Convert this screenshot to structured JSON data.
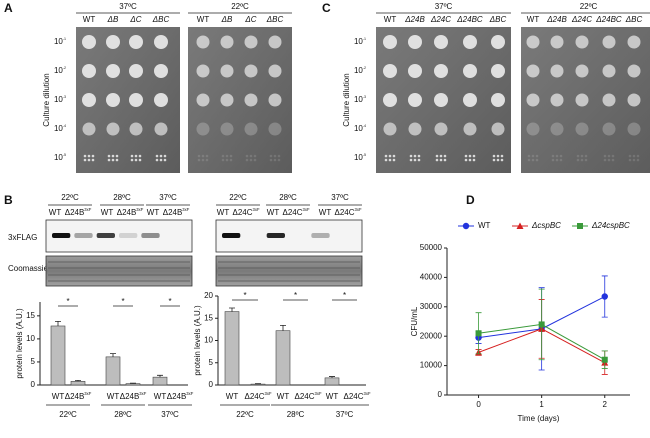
{
  "panel_labels": [
    "A",
    "B",
    "C",
    "D"
  ],
  "panel_a": {
    "temps": [
      "37ºC",
      "22ºC"
    ],
    "strains": [
      "WT",
      "ΔB",
      "ΔC",
      "ΔBC"
    ],
    "dilution_base": "10",
    "dilution_exponents": [
      "-1",
      "-2",
      "-3",
      "-4",
      "-5"
    ],
    "ylabel": "Culture dilution"
  },
  "panel_c": {
    "temps": [
      "37ºC",
      "22ºC"
    ],
    "strains": [
      "WT",
      "Δ24B",
      "Δ24C",
      "Δ24BC",
      "ΔBC"
    ],
    "dilution_base": "10",
    "dilution_exponents": [
      "-1",
      "-2",
      "-3",
      "-4",
      "-5"
    ],
    "ylabel": "Culture dilution"
  },
  "panel_b": {
    "row_labels": [
      "3xFLAG",
      "Coomassie"
    ],
    "blot_left": {
      "temps": [
        "22ºC",
        "28ºC",
        "37ºC"
      ],
      "strains": [
        "WT",
        "Δ24B"
      ],
      "superscript": "3xF"
    },
    "blot_right": {
      "temps": [
        "22ºC",
        "28ºC",
        "37ºC"
      ],
      "strains": [
        "WT",
        "Δ24C"
      ],
      "superscript": "3xF"
    }
  },
  "chart_data": [
    {
      "type": "bar",
      "categories": [
        "WT",
        "Δ24B",
        "WT",
        "Δ24B",
        "WT",
        "Δ24B"
      ],
      "category_superscript": "3xF",
      "groups": [
        "22ºC",
        "28ºC",
        "37ºC"
      ],
      "values": [
        12.8,
        0.8,
        6.1,
        0.3,
        1.7,
        0
      ],
      "errors": [
        1.0,
        0.2,
        0.7,
        0.1,
        0.4,
        0
      ],
      "color": "#bdbdbd",
      "ylim": [
        0,
        18
      ],
      "yticks": [
        0,
        5,
        10,
        15
      ],
      "ylabel": "protein levels (A.U.)",
      "significance": "*"
    },
    {
      "type": "bar",
      "categories": [
        "WT",
        "Δ24C",
        "WT",
        "Δ24C",
        "WT",
        "Δ24C"
      ],
      "category_superscript": "3xF",
      "groups": [
        "22ºC",
        "28ºC",
        "37ºC"
      ],
      "values": [
        16.5,
        0.2,
        12.2,
        0,
        1.6,
        0
      ],
      "errors": [
        0.8,
        0.1,
        1.2,
        0,
        0.3,
        0
      ],
      "color": "#bdbdbd",
      "ylim": [
        0,
        20
      ],
      "yticks": [
        0,
        5,
        10,
        15,
        20
      ],
      "ylabel": "protein levels (A.U.)",
      "significance": "*"
    },
    {
      "type": "line",
      "x": [
        0,
        1,
        2
      ],
      "xlim": [
        -0.5,
        2.4
      ],
      "xticks": [
        0,
        1,
        2
      ],
      "ylim": [
        0,
        50000
      ],
      "yticks": [
        0,
        10000,
        20000,
        30000,
        40000,
        50000
      ],
      "xlabel": "Time (days)",
      "ylabel": "CFU/mL",
      "series": [
        {
          "name": "WT",
          "color": "#2233dd",
          "marker": "circle",
          "values": [
            19500,
            22500,
            33500
          ],
          "errors": [
            2000,
            14000,
            7000
          ]
        },
        {
          "name": "ΔcspBC",
          "color": "#d62020",
          "marker": "triangle",
          "values": [
            14500,
            22500,
            11000
          ],
          "errors": [
            1000,
            10000,
            4000
          ]
        },
        {
          "name": "Δ24cspBC",
          "color": "#3a9a3a",
          "marker": "square",
          "values": [
            21000,
            24000,
            12000
          ],
          "errors": [
            7000,
            12000,
            3000
          ]
        }
      ]
    }
  ]
}
